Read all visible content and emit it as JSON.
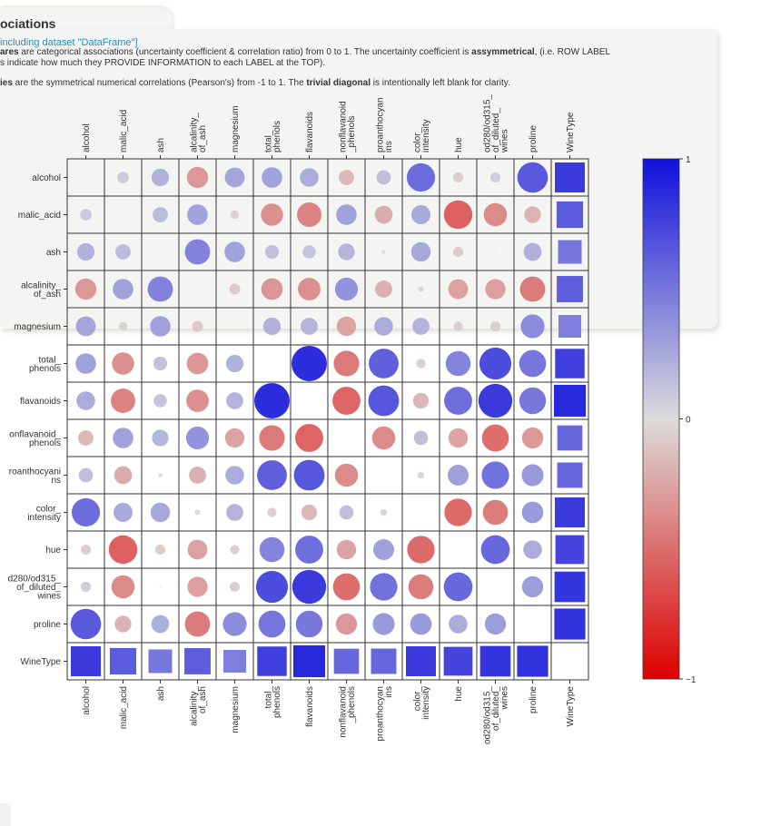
{
  "header": {
    "title": "ociations",
    "subtitle": "including dataset \"DataFrame\"]",
    "line1_a": "ares",
    "line1_b": " are categorical associations (uncertainty coefficient & correlation ratio) from 0 to 1. The uncertainty coefficient is ",
    "line1_c": "assymmetrical",
    "line1_d": ", (i.e. ROW LABEL",
    "line2": "s indicate how much they PROVIDE INFORMATION to each LABEL at the TOP).",
    "line3_a": "ies",
    "line3_b": " are the symmetrical numerical correlations (Pearson's) from -1 to 1. The ",
    "line3_c": "trivial diagonal",
    "line3_d": " is intentionally left blank for clarity."
  },
  "chart_data": {
    "type": "heatmap",
    "labels": [
      "alcohol",
      "malic_acid",
      "ash",
      "alcalinity_of_ash",
      "magnesium",
      "total_phenols",
      "flavanoids",
      "nonflavanoid_phenols",
      "proanthocyanins",
      "color_intensity",
      "hue",
      "od280/od315_of_diluted_wines",
      "proline",
      "WineType"
    ],
    "tick_labels": [
      [
        "alcohol"
      ],
      [
        "malic_acid"
      ],
      [
        "ash"
      ],
      [
        "alcalinity_",
        "of_ash"
      ],
      [
        "magnesium"
      ],
      [
        "total_",
        "phenols"
      ],
      [
        "flavanoids"
      ],
      [
        "nonflavanoid",
        "_phenols"
      ],
      [
        "proanthocyan",
        "ins"
      ],
      [
        "color_",
        "intensity"
      ],
      [
        "hue"
      ],
      [
        "od280/od315_",
        "of_diluted_",
        "wines"
      ],
      [
        "proline"
      ],
      [
        "WineType"
      ]
    ],
    "row_tick_labels": [
      [
        "alcohol"
      ],
      [
        "malic_acid"
      ],
      [
        "ash"
      ],
      [
        "alcalinity_",
        "of_ash"
      ],
      [
        "magnesium"
      ],
      [
        "total_",
        "phenols"
      ],
      [
        "flavanoids"
      ],
      [
        "onflavanoid_",
        "phenols"
      ],
      [
        "roanthocyani",
        "ns"
      ],
      [
        "color_",
        "intensity"
      ],
      [
        "hue"
      ],
      [
        "d280/od315_",
        "of_diluted_",
        "wines"
      ],
      [
        "proline"
      ],
      [
        "WineType"
      ]
    ],
    "matrix": [
      [
        null,
        0.09,
        0.21,
        -0.31,
        0.27,
        0.29,
        0.24,
        -0.16,
        0.14,
        0.55,
        -0.07,
        0.07,
        0.64,
        0.79
      ],
      [
        0.09,
        null,
        0.16,
        0.29,
        -0.05,
        -0.34,
        -0.41,
        0.29,
        -0.22,
        0.25,
        -0.56,
        -0.37,
        -0.19,
        0.63
      ],
      [
        0.21,
        0.16,
        null,
        0.44,
        0.29,
        0.13,
        0.12,
        0.19,
        0.01,
        0.26,
        -0.07,
        0.0,
        0.22,
        0.5
      ],
      [
        -0.31,
        0.29,
        0.44,
        null,
        -0.08,
        -0.32,
        -0.35,
        0.36,
        -0.2,
        0.02,
        -0.27,
        -0.28,
        -0.44,
        0.62
      ],
      [
        0.27,
        -0.05,
        0.29,
        -0.08,
        null,
        0.21,
        0.2,
        -0.26,
        0.24,
        0.2,
        -0.06,
        -0.07,
        0.39,
        0.46
      ],
      [
        0.29,
        -0.34,
        0.13,
        -0.32,
        0.21,
        null,
        0.86,
        -0.45,
        0.61,
        -0.06,
        0.43,
        0.7,
        0.5,
        0.77
      ],
      [
        0.24,
        -0.41,
        0.12,
        -0.35,
        0.2,
        0.86,
        null,
        -0.54,
        0.65,
        -0.17,
        0.54,
        0.79,
        0.49,
        0.88
      ],
      [
        -0.16,
        0.29,
        0.19,
        0.36,
        -0.26,
        -0.45,
        -0.54,
        null,
        -0.37,
        0.14,
        -0.26,
        -0.5,
        -0.31,
        0.57
      ],
      [
        0.14,
        -0.22,
        0.01,
        -0.2,
        0.24,
        0.61,
        0.65,
        -0.37,
        null,
        -0.03,
        0.3,
        0.52,
        0.33,
        0.58
      ],
      [
        0.55,
        0.25,
        0.26,
        0.02,
        0.2,
        -0.06,
        -0.17,
        0.14,
        -0.03,
        null,
        -0.52,
        -0.43,
        0.32,
        0.79
      ],
      [
        -0.07,
        -0.56,
        -0.07,
        -0.27,
        -0.06,
        0.43,
        0.54,
        -0.26,
        0.3,
        -0.52,
        null,
        0.57,
        0.24,
        0.74
      ],
      [
        0.07,
        -0.37,
        0.0,
        -0.28,
        -0.07,
        0.7,
        0.79,
        -0.5,
        0.52,
        -0.43,
        0.57,
        null,
        0.31,
        0.82
      ],
      [
        0.64,
        -0.19,
        0.22,
        -0.44,
        0.39,
        0.5,
        0.49,
        -0.31,
        0.33,
        0.32,
        0.24,
        0.31,
        null,
        0.84
      ],
      [
        0.79,
        0.63,
        0.5,
        0.62,
        0.46,
        0.77,
        0.88,
        0.57,
        0.58,
        0.79,
        0.74,
        0.82,
        0.84,
        null
      ]
    ],
    "colorbar": {
      "min": -1,
      "max": 1,
      "ticks": [
        "1",
        "0",
        "−1"
      ],
      "colors": [
        "#1010dd",
        "#dcdcdc",
        "#dd0000"
      ]
    },
    "square_color_values": [
      0.79,
      0.63,
      0.5,
      0.62,
      0.46,
      0.77,
      0.88,
      0.57,
      0.58,
      0.79,
      0.74,
      0.82,
      0.84
    ]
  }
}
